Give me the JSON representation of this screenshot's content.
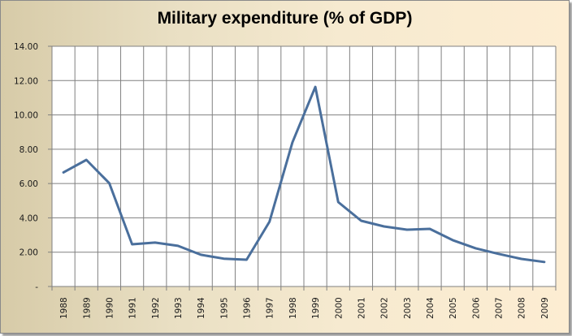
{
  "chart_data": {
    "type": "line",
    "title": "Military expenditure (% of GDP)",
    "xlabel": "",
    "ylabel": "",
    "ylim": [
      0,
      14
    ],
    "grid": true,
    "legend": "none",
    "yticks": [
      "-",
      "2.00",
      "4.00",
      "6.00",
      "8.00",
      "10.00",
      "12.00",
      "14.00"
    ],
    "ytick_values": [
      0,
      2,
      4,
      6,
      8,
      10,
      12,
      14
    ],
    "categories": [
      "1988",
      "1989",
      "1990",
      "1991",
      "1992",
      "1993",
      "1994",
      "1995",
      "1996",
      "1997",
      "1998",
      "1999",
      "2000",
      "2001",
      "2002",
      "2003",
      "2004",
      "2005",
      "2006",
      "2007",
      "2008",
      "2009"
    ],
    "series": [
      {
        "name": "Military expenditure (% of GDP)",
        "color": "#4a6f9c",
        "values": [
          6.65,
          7.38,
          6.02,
          2.46,
          2.56,
          2.37,
          1.85,
          1.62,
          1.56,
          3.78,
          8.4,
          11.63,
          4.92,
          3.83,
          3.5,
          3.31,
          3.36,
          2.7,
          2.23,
          1.9,
          1.61,
          1.43
        ]
      }
    ]
  },
  "colors": {
    "gridline": "#808080",
    "plot_bg": "#ffffff"
  }
}
